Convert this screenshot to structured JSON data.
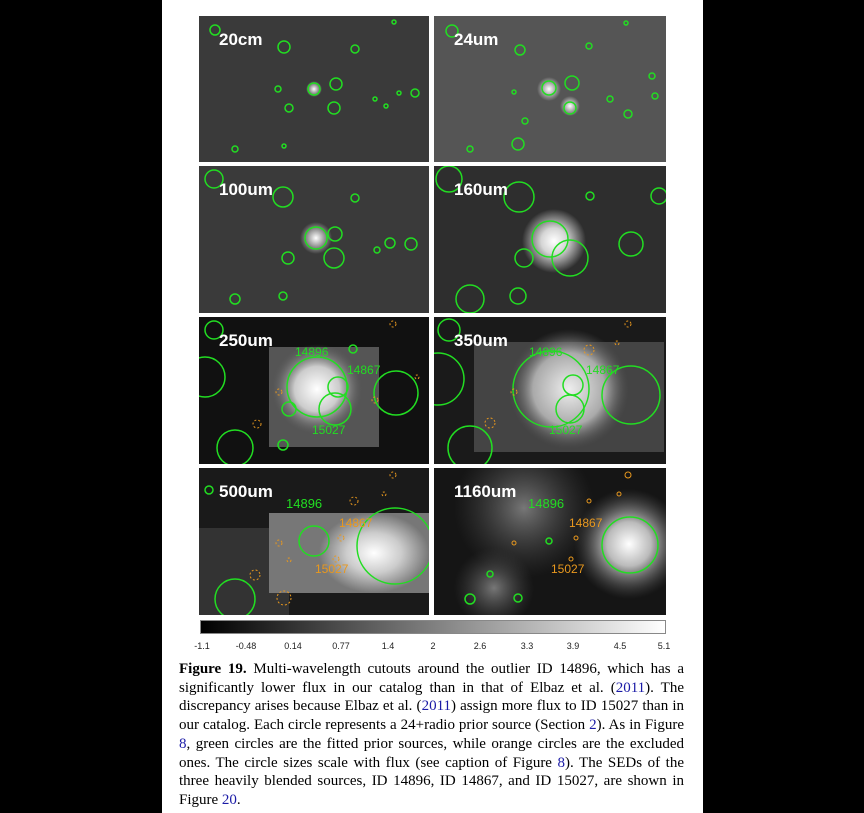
{
  "panels": [
    {
      "id": "p20cm",
      "label": "20cm",
      "bg": "#3a3a3a"
    },
    {
      "id": "p24um",
      "label": "24um",
      "bg": "#555555"
    },
    {
      "id": "p100um",
      "label": "100um",
      "bg": "#3a3a3a"
    },
    {
      "id": "p160um",
      "label": "160um",
      "bg": "#2e2e2e"
    },
    {
      "id": "p250um",
      "label": "250um",
      "bg": "#111111",
      "ids": [
        "14896",
        "14867",
        "15027"
      ]
    },
    {
      "id": "p350um",
      "label": "350um",
      "bg": "#1a1a1a",
      "ids": [
        "14896",
        "14867",
        "15027"
      ]
    },
    {
      "id": "p500um",
      "label": "500um",
      "bg": "#1a1a1a",
      "ids": [
        "14896",
        "14867",
        "15027"
      ]
    },
    {
      "id": "p1160um",
      "label": "1160um",
      "bg": "#151515",
      "ids": [
        "14896",
        "14867",
        "15027"
      ]
    }
  ],
  "colorbar": {
    "ticks": [
      "-1.1",
      "-0.48",
      "0.14",
      "0.77",
      "1.4",
      "2",
      "2.6",
      "3.3",
      "3.9",
      "4.5",
      "5.1"
    ]
  },
  "caption": {
    "figure_label": "Figure 19.",
    "part1": " Multi-wavelength cutouts around the outlier ID 14896, which has a significantly lower flux in our catalog than in that of Elbaz et al. (",
    "ref1": "2011",
    "part2": "). The discrepancy arises because Elbaz et al. (",
    "ref2": "2011",
    "part3": ") assign more flux to ID 15027 than in our catalog. Each circle represents a 24+radio prior source (Section ",
    "ref3": "2",
    "part4": "). As in Figure ",
    "ref4": "8",
    "part5": ", green circles are the fitted prior sources, while orange circles are the excluded ones. The circle sizes scale with flux (see caption of Figure ",
    "ref5": "8",
    "part6": "). The SEDs of the three heavily blended sources, ID 14896, ID 14867, and ID 15027, are shown in Figure ",
    "ref6": "20",
    "part7": "."
  },
  "colors": {
    "green": "#22dd22",
    "orange": "#e8981e"
  }
}
